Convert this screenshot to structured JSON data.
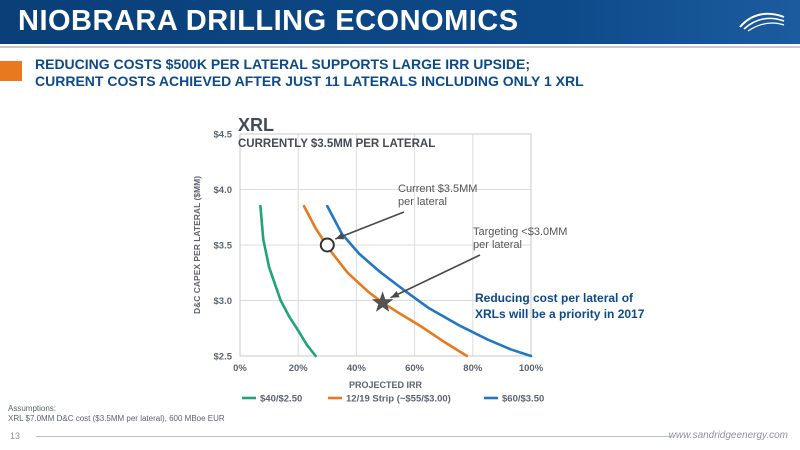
{
  "header": {
    "title": "NIOBRARA DRILLING ECONOMICS",
    "subtitle_line1": "REDUCING COSTS $500K PER LATERAL SUPPORTS LARGE IRR UPSIDE;",
    "subtitle_line2": "CURRENT COSTS ACHIEVED AFTER JUST 11 LATERALS INCLUDING ONLY 1 XRL",
    "accent_color": "#e8791e",
    "banner_color": "#0d4a8a"
  },
  "chart_data": {
    "type": "line",
    "title": "XRL",
    "subtitle": "CURRENTLY $3.5MM PER LATERAL",
    "xlabel": "PROJECTED IRR",
    "ylabel": "D&C CAPEX PER LATERAL ($MM)",
    "xlim": [
      0,
      100
    ],
    "ylim": [
      2.5,
      4.5
    ],
    "x_ticks": [
      0,
      20,
      40,
      60,
      80,
      100
    ],
    "x_tick_labels": [
      "0%",
      "20%",
      "40%",
      "60%",
      "80%",
      "100%"
    ],
    "y_ticks": [
      2.5,
      3.0,
      3.5,
      4.0,
      4.5
    ],
    "y_tick_labels": [
      "$2.5",
      "$3.0",
      "$3.5",
      "$4.0",
      "$4.5"
    ],
    "grid": true,
    "legend_position": "bottom",
    "series": [
      {
        "name": "$40/$2.50",
        "color": "#1fa37a",
        "x": [
          7,
          8,
          10,
          12,
          14,
          17,
          20,
          23,
          26
        ],
        "y": [
          3.85,
          3.55,
          3.3,
          3.15,
          3.0,
          2.85,
          2.73,
          2.6,
          2.5
        ]
      },
      {
        "name": "12/19 Strip (~$55/$3.00)",
        "color": "#e8791e",
        "x": [
          22,
          26,
          31,
          37,
          44,
          49,
          55,
          62,
          70,
          78
        ],
        "y": [
          3.85,
          3.65,
          3.45,
          3.25,
          3.08,
          2.98,
          2.88,
          2.77,
          2.63,
          2.5
        ]
      },
      {
        "name": "$60/$3.50",
        "color": "#1f78c1",
        "x": [
          30,
          35,
          41,
          48,
          56,
          65,
          75,
          85,
          93,
          100
        ],
        "y": [
          3.85,
          3.6,
          3.42,
          3.26,
          3.1,
          2.93,
          2.78,
          2.65,
          2.56,
          2.5
        ]
      }
    ],
    "markers": [
      {
        "type": "circle",
        "x": 30,
        "y": 3.5
      },
      {
        "type": "star",
        "x": 49,
        "y": 2.98
      }
    ],
    "annotations": [
      {
        "line1": "Current $3.5MM",
        "line2": "per lateral"
      },
      {
        "line1": "Targeting <$3.0MM",
        "line2": "per lateral"
      },
      {
        "line1": "Reducing cost per lateral of",
        "line2": "XRLs will be a priority in 2017",
        "color": "#0d4a8a"
      }
    ]
  },
  "footer": {
    "assumptions_label": "Assumptions:",
    "assumptions_text": "XRL $7.0MM D&C cost ($3.5MM per lateral), 600 MBoe EUR",
    "page_number": "13",
    "website": "www.sandridgeenergy.com"
  }
}
